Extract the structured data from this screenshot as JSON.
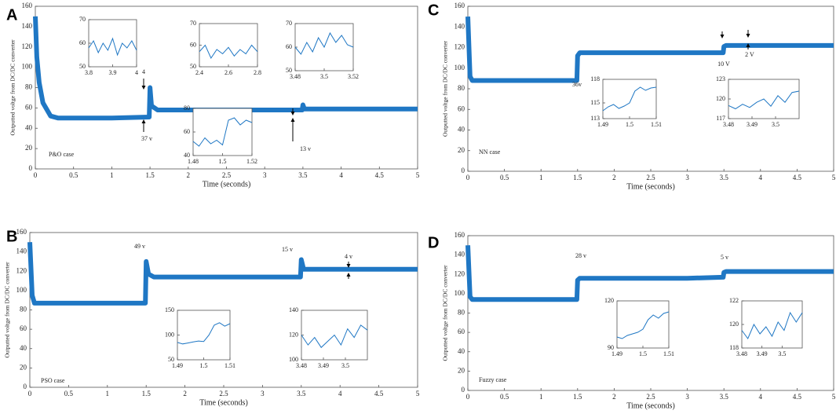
{
  "chart_data": [
    {
      "type": "line",
      "panel": "A",
      "xlabel": "Time (seconds)",
      "ylabel": "Outputted voltge from DC/DC converter",
      "color": "#1f77c4",
      "xlim": [
        0,
        5
      ],
      "xticks": [
        0,
        0.5,
        1,
        1.5,
        2,
        2.5,
        3,
        3.5,
        4,
        4.5,
        5
      ],
      "ylim": [
        0,
        160
      ],
      "yticks": [
        0,
        20,
        40,
        60,
        80,
        100,
        120,
        140,
        160
      ],
      "x": [
        0,
        0.02,
        0.05,
        0.1,
        0.2,
        0.3,
        0.5,
        1,
        1.49,
        1.5,
        1.52,
        1.6,
        2,
        2.5,
        3,
        3.49,
        3.5,
        3.52,
        4,
        4.5,
        5
      ],
      "values": [
        150,
        110,
        85,
        65,
        52,
        50,
        50,
        50,
        51,
        80,
        62,
        58,
        58,
        58,
        58,
        58,
        63,
        59,
        59,
        59,
        59
      ],
      "annotations": [
        "P&O case",
        "37 v",
        "4",
        "13 v"
      ],
      "insets": [
        {
          "xlim": [
            3.8,
            4
          ],
          "xticks": [
            3.8,
            3.9,
            4
          ],
          "ylim": [
            50,
            70
          ],
          "yticks": [
            50,
            60,
            70
          ],
          "x": [
            3.8,
            3.82,
            3.84,
            3.86,
            3.88,
            3.9,
            3.92,
            3.94,
            3.96,
            3.98,
            4
          ],
          "values": [
            58,
            61,
            56,
            60,
            57,
            62,
            55,
            60,
            58,
            61,
            57
          ]
        },
        {
          "xlim": [
            2.4,
            2.8
          ],
          "xticks": [
            2.4,
            2.6,
            2.8
          ],
          "ylim": [
            50,
            70
          ],
          "yticks": [
            50,
            60,
            70
          ],
          "x": [
            2.4,
            2.44,
            2.48,
            2.52,
            2.56,
            2.6,
            2.64,
            2.68,
            2.72,
            2.76,
            2.8
          ],
          "values": [
            57,
            60,
            54,
            58,
            56,
            59,
            55,
            58,
            56,
            60,
            57
          ]
        },
        {
          "xlim": [
            3.48,
            3.52
          ],
          "xticks": [
            3.48,
            3.5,
            3.52
          ],
          "ylim": [
            50,
            70
          ],
          "yticks": [
            50,
            60,
            70
          ],
          "x": [
            3.48,
            3.484,
            3.488,
            3.492,
            3.496,
            3.5,
            3.504,
            3.508,
            3.512,
            3.516,
            3.52
          ],
          "values": [
            60,
            57,
            62,
            58,
            64,
            60,
            66,
            62,
            65,
            61,
            60
          ]
        },
        {
          "xlim": [
            1.48,
            1.52
          ],
          "xticks": [
            1.48,
            1.5,
            1.52
          ],
          "ylim": [
            40,
            80
          ],
          "yticks": [
            40,
            60,
            80
          ],
          "x": [
            1.48,
            1.484,
            1.488,
            1.492,
            1.496,
            1.5,
            1.504,
            1.508,
            1.512,
            1.516,
            1.52
          ],
          "values": [
            52,
            48,
            55,
            50,
            53,
            49,
            70,
            72,
            66,
            70,
            68
          ]
        }
      ]
    },
    {
      "type": "line",
      "panel": "B",
      "xlabel": "Time (seconds)",
      "ylabel": "Outputted voltge from DC/DC converter",
      "color": "#1f77c4",
      "xlim": [
        0,
        5
      ],
      "xticks": [
        0,
        0.5,
        1,
        1.5,
        2,
        2.5,
        3,
        3.5,
        4,
        4.5,
        5
      ],
      "ylim": [
        0,
        160
      ],
      "yticks": [
        0,
        20,
        40,
        60,
        80,
        100,
        120,
        140,
        160
      ],
      "x": [
        0,
        0.03,
        0.06,
        0.5,
        1,
        1.49,
        1.5,
        1.53,
        1.6,
        2,
        2.5,
        3,
        3.49,
        3.5,
        3.53,
        4,
        4.5,
        5
      ],
      "values": [
        150,
        95,
        87,
        87,
        87,
        87,
        130,
        117,
        114,
        114,
        114,
        114,
        114,
        132,
        122,
        122,
        122,
        122
      ],
      "annotations": [
        "PSO case",
        "49 v",
        "15 v",
        "4 v"
      ],
      "insets": [
        {
          "xlim": [
            1.49,
            1.51
          ],
          "xticks": [
            1.49,
            1.5,
            1.51
          ],
          "ylim": [
            50,
            150
          ],
          "yticks": [
            50,
            100,
            150
          ],
          "x": [
            1.49,
            1.492,
            1.494,
            1.496,
            1.498,
            1.5,
            1.502,
            1.504,
            1.506,
            1.508,
            1.51
          ],
          "values": [
            85,
            82,
            84,
            86,
            88,
            87,
            100,
            120,
            125,
            118,
            123
          ]
        },
        {
          "xlim": [
            3.48,
            3.51
          ],
          "xticks": [
            3.48,
            3.49,
            3.5
          ],
          "ylim": [
            100,
            140
          ],
          "yticks": [
            100,
            120,
            140
          ],
          "x": [
            3.48,
            3.483,
            3.486,
            3.489,
            3.492,
            3.495,
            3.498,
            3.501,
            3.504,
            3.507,
            3.51
          ],
          "values": [
            120,
            112,
            118,
            110,
            115,
            120,
            112,
            125,
            118,
            128,
            124
          ]
        }
      ]
    },
    {
      "type": "line",
      "panel": "C",
      "xlabel": "Time (seconds)",
      "ylabel": "Outputted voltge from DC/DC converter",
      "color": "#1f77c4",
      "xlim": [
        0,
        5
      ],
      "xticks": [
        0,
        0.5,
        1,
        1.5,
        2,
        2.5,
        3,
        3.5,
        4,
        4.5,
        5
      ],
      "ylim": [
        0,
        160
      ],
      "yticks": [
        0,
        20,
        40,
        60,
        80,
        100,
        120,
        140,
        160
      ],
      "x": [
        0,
        0.03,
        0.06,
        0.5,
        1,
        1.49,
        1.5,
        1.53,
        2,
        2.5,
        3,
        3.49,
        3.5,
        3.53,
        4,
        4.5,
        5
      ],
      "values": [
        150,
        92,
        88,
        88,
        88,
        88,
        112,
        115,
        115,
        115,
        115,
        115,
        121,
        122,
        122,
        122,
        122
      ],
      "annotations": [
        "NN case",
        "36v",
        "10 V",
        "2 V"
      ],
      "insets": [
        {
          "xlim": [
            1.49,
            1.51
          ],
          "xticks": [
            1.49,
            1.5,
            1.51
          ],
          "ylim": [
            113,
            118
          ],
          "yticks": [
            113,
            115,
            118
          ],
          "x": [
            1.49,
            1.492,
            1.494,
            1.496,
            1.498,
            1.5,
            1.502,
            1.504,
            1.506,
            1.508,
            1.51
          ],
          "values": [
            114,
            114.5,
            114.8,
            114.3,
            114.6,
            115,
            116.5,
            117,
            116.6,
            116.9,
            117
          ]
        },
        {
          "xlim": [
            3.48,
            3.51
          ],
          "xticks": [
            3.48,
            3.49,
            3.5
          ],
          "ylim": [
            117,
            123
          ],
          "yticks": [
            117,
            120,
            123
          ],
          "x": [
            3.48,
            3.483,
            3.486,
            3.489,
            3.492,
            3.495,
            3.498,
            3.501,
            3.504,
            3.507,
            3.51
          ],
          "values": [
            119,
            118.5,
            119.2,
            118.7,
            119.5,
            120,
            118.9,
            120.5,
            119.5,
            121,
            121.2
          ]
        }
      ]
    },
    {
      "type": "line",
      "panel": "D",
      "xlabel": "Time (seconds)",
      "ylabel": "Outputted voltge from DC/DC converter",
      "color": "#1f77c4",
      "xlim": [
        0,
        5
      ],
      "xticks": [
        0,
        0.5,
        1,
        1.5,
        2,
        2.5,
        3,
        3.5,
        4,
        4.5,
        5
      ],
      "ylim": [
        0,
        160
      ],
      "yticks": [
        0,
        20,
        40,
        60,
        80,
        100,
        120,
        140,
        160
      ],
      "x": [
        0,
        0.03,
        0.06,
        0.5,
        1,
        1.49,
        1.5,
        1.53,
        2,
        2.5,
        3,
        3.49,
        3.5,
        3.53,
        4,
        4.5,
        5
      ],
      "values": [
        150,
        97,
        94,
        94,
        94,
        94,
        114,
        116,
        116,
        116,
        116,
        117,
        122,
        123,
        123,
        123,
        123
      ],
      "annotations": [
        "Fuzzy case",
        "28 v",
        "5 v"
      ],
      "insets": [
        {
          "xlim": [
            1.49,
            1.51
          ],
          "xticks": [
            1.49,
            1.5,
            1.51
          ],
          "ylim": [
            90,
            120
          ],
          "yticks": [
            90,
            120
          ],
          "x": [
            1.49,
            1.492,
            1.494,
            1.496,
            1.498,
            1.5,
            1.502,
            1.504,
            1.506,
            1.508,
            1.51
          ],
          "values": [
            97,
            96,
            98,
            99,
            100,
            102,
            108,
            111,
            109,
            112,
            113
          ]
        },
        {
          "xlim": [
            3.48,
            3.51
          ],
          "xticks": [
            3.48,
            3.49,
            3.5
          ],
          "ylim": [
            118,
            122
          ],
          "yticks": [
            118,
            120,
            122
          ],
          "x": [
            3.48,
            3.483,
            3.486,
            3.489,
            3.492,
            3.495,
            3.498,
            3.501,
            3.504,
            3.507,
            3.51
          ],
          "values": [
            119.5,
            118.8,
            120,
            119.2,
            119.8,
            119,
            120.2,
            119.5,
            121,
            120.2,
            121
          ]
        }
      ]
    }
  ]
}
